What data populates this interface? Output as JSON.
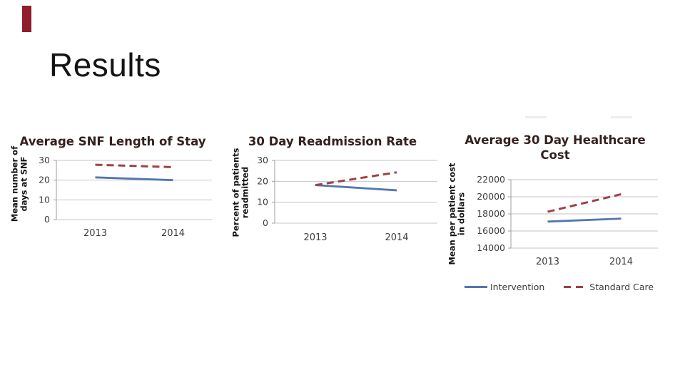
{
  "slide": {
    "title": "Results",
    "accent_bar_color": "#8f1d2c"
  },
  "colors": {
    "intervention": "#5377ae",
    "standard_care": "#9d4247",
    "gridline": "#c4c4c4",
    "axis_line": "#9e9e9e",
    "chart_title": "#33211e",
    "tick_label": "#3c3c3c",
    "legend_text": "#3c3c3c"
  },
  "legend": {
    "items": [
      {
        "label": "Intervention",
        "style": "solid"
      },
      {
        "label": "Standard Care",
        "style": "dashed"
      }
    ]
  },
  "chart_data": [
    {
      "type": "line",
      "title": "Average SNF Length of Stay",
      "xlabel": "",
      "ylabel": "Mean number of days at SNF",
      "ylabel_lines": [
        "Mean number of",
        "days at SNF"
      ],
      "categories": [
        "2013",
        "2014"
      ],
      "series": [
        {
          "name": "Intervention",
          "style": "solid",
          "values": [
            21.4,
            20.0
          ]
        },
        {
          "name": "Standard Care",
          "style": "dashed",
          "values": [
            27.8,
            26.6
          ]
        }
      ],
      "ylim": [
        0,
        30
      ],
      "yticks": [
        0,
        10,
        20,
        30
      ],
      "grid": true,
      "legend_position": "shared-below-third-chart"
    },
    {
      "type": "line",
      "title": "30 Day Readmission Rate",
      "xlabel": "",
      "ylabel": "Percent of patients readmitted",
      "ylabel_lines": [
        "Percent of patients",
        "readmitted"
      ],
      "categories": [
        "2013",
        "2014"
      ],
      "series": [
        {
          "name": "Intervention",
          "style": "solid",
          "values": [
            18.2,
            15.7
          ]
        },
        {
          "name": "Standard Care",
          "style": "dashed",
          "values": [
            18.2,
            24.3
          ]
        }
      ],
      "ylim": [
        0,
        30
      ],
      "yticks": [
        0,
        10,
        20,
        30
      ],
      "grid": true,
      "legend_position": "shared-below-third-chart"
    },
    {
      "type": "line",
      "title": "Average 30 Day Healthcare Cost",
      "xlabel": "",
      "ylabel": "Mean per patient cost in dollars",
      "ylabel_lines": [
        "Mean per patient cost",
        "in dollars"
      ],
      "categories": [
        "2013",
        "2014"
      ],
      "series": [
        {
          "name": "Intervention",
          "style": "solid",
          "values": [
            17100,
            17450
          ]
        },
        {
          "name": "Standard Care",
          "style": "dashed",
          "values": [
            18250,
            20300
          ]
        }
      ],
      "ylim": [
        14000,
        22000
      ],
      "yticks": [
        14000,
        16000,
        18000,
        20000,
        22000
      ],
      "grid": true,
      "legend_position": "below"
    }
  ]
}
